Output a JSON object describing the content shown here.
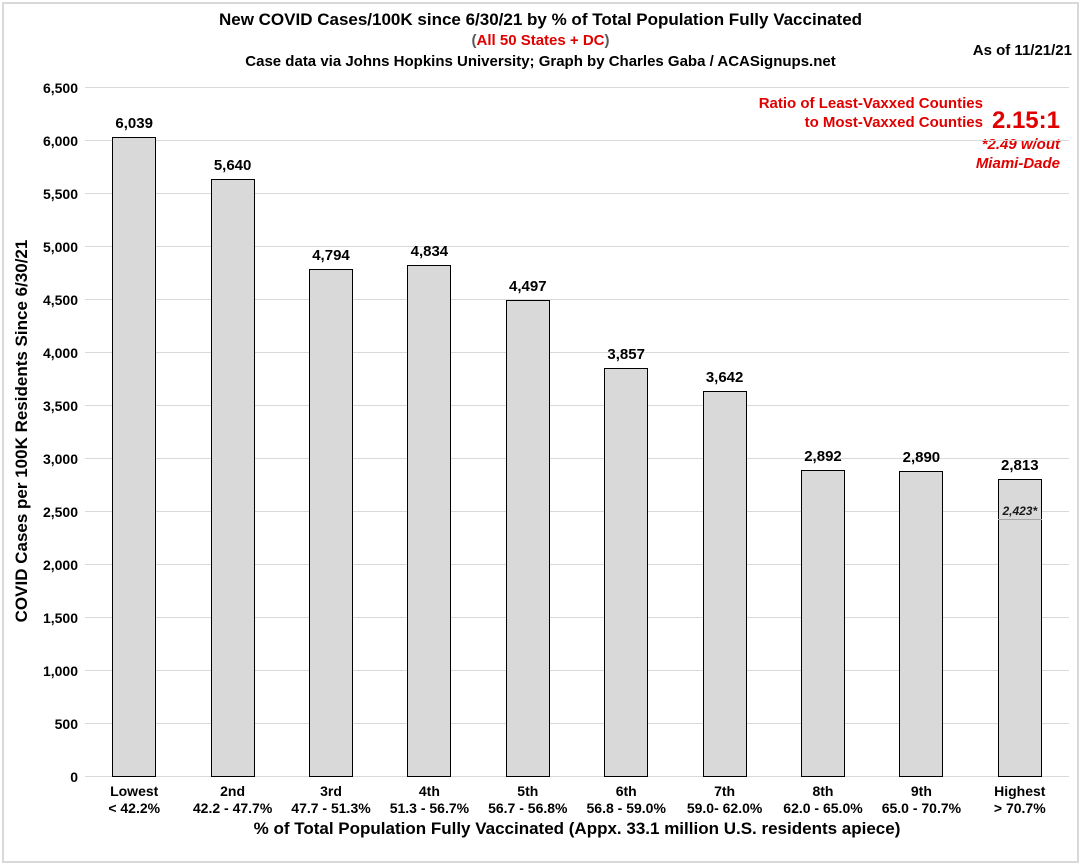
{
  "header": {
    "title": "New COVID Cases/100K since 6/30/21 by % of Total Population Fully Vaccinated",
    "subtitle": {
      "paren_open": "(",
      "text": "All 50 States + DC",
      "paren_close": ")"
    },
    "credit": "Case data via Johns Hopkins University; Graph by Charles Gaba / ACASignups.net",
    "as_of": "As of 11/21/21"
  },
  "annotation": {
    "line1": "Ratio of Least-Vaxxed Counties",
    "line2": "to Most-Vaxxed Counties",
    "ratio": "2.15:1",
    "note_line1": "*2.49 w/out",
    "note_line2": "Miami-Dade"
  },
  "chart_data": {
    "type": "bar",
    "title": "New COVID Cases/100K since 6/30/21 by % of Total Population Fully Vaccinated",
    "categories": [
      "Lowest",
      "2nd",
      "3rd",
      "4th",
      "5th",
      "6th",
      "7th",
      "8th",
      "9th",
      "Highest"
    ],
    "category_ranges": [
      "< 42.2%",
      "42.2 - 47.7%",
      "47.7 - 51.3%",
      "51.3 - 56.7%",
      "56.7 - 56.8%",
      "56.8 - 59.0%",
      "59.0- 62.0%",
      "62.0 - 65.0%",
      "65.0 - 70.7%",
      "> 70.7%"
    ],
    "values": [
      6039,
      5640,
      4794,
      4834,
      4497,
      3857,
      3642,
      2892,
      2890,
      2813
    ],
    "value_labels": [
      "6,039",
      "5,640",
      "4,794",
      "4,834",
      "4,497",
      "3,857",
      "3,642",
      "2,892",
      "2,890",
      "2,813"
    ],
    "xlabel": "% of Total Population Fully Vaccinated (Appx. 33.1 million U.S. residents apiece)",
    "ylabel": "COVID Cases per 100K Residents Since 6/30/21",
    "ylim": [
      0,
      6500
    ],
    "ytick_step": 500,
    "ytick_labels": [
      "0",
      "500",
      "1,000",
      "1,500",
      "2,000",
      "2,500",
      "3,000",
      "3,500",
      "4,000",
      "4,500",
      "5,000",
      "5,500",
      "6,000",
      "6,500"
    ],
    "grid": true,
    "legend": "none",
    "special_marker": {
      "bar_index": 9,
      "value": 2423,
      "label": "2,423*"
    }
  },
  "colors": {
    "accent_red": "#e00000",
    "bar_fill": "#d9d9d9",
    "bar_border": "#000000",
    "gridline": "#d9d9d9",
    "frame": "#d9d9d9",
    "marker_line": "#a6a6a6",
    "subtitle_paren": "#595959",
    "text": "#000000"
  }
}
